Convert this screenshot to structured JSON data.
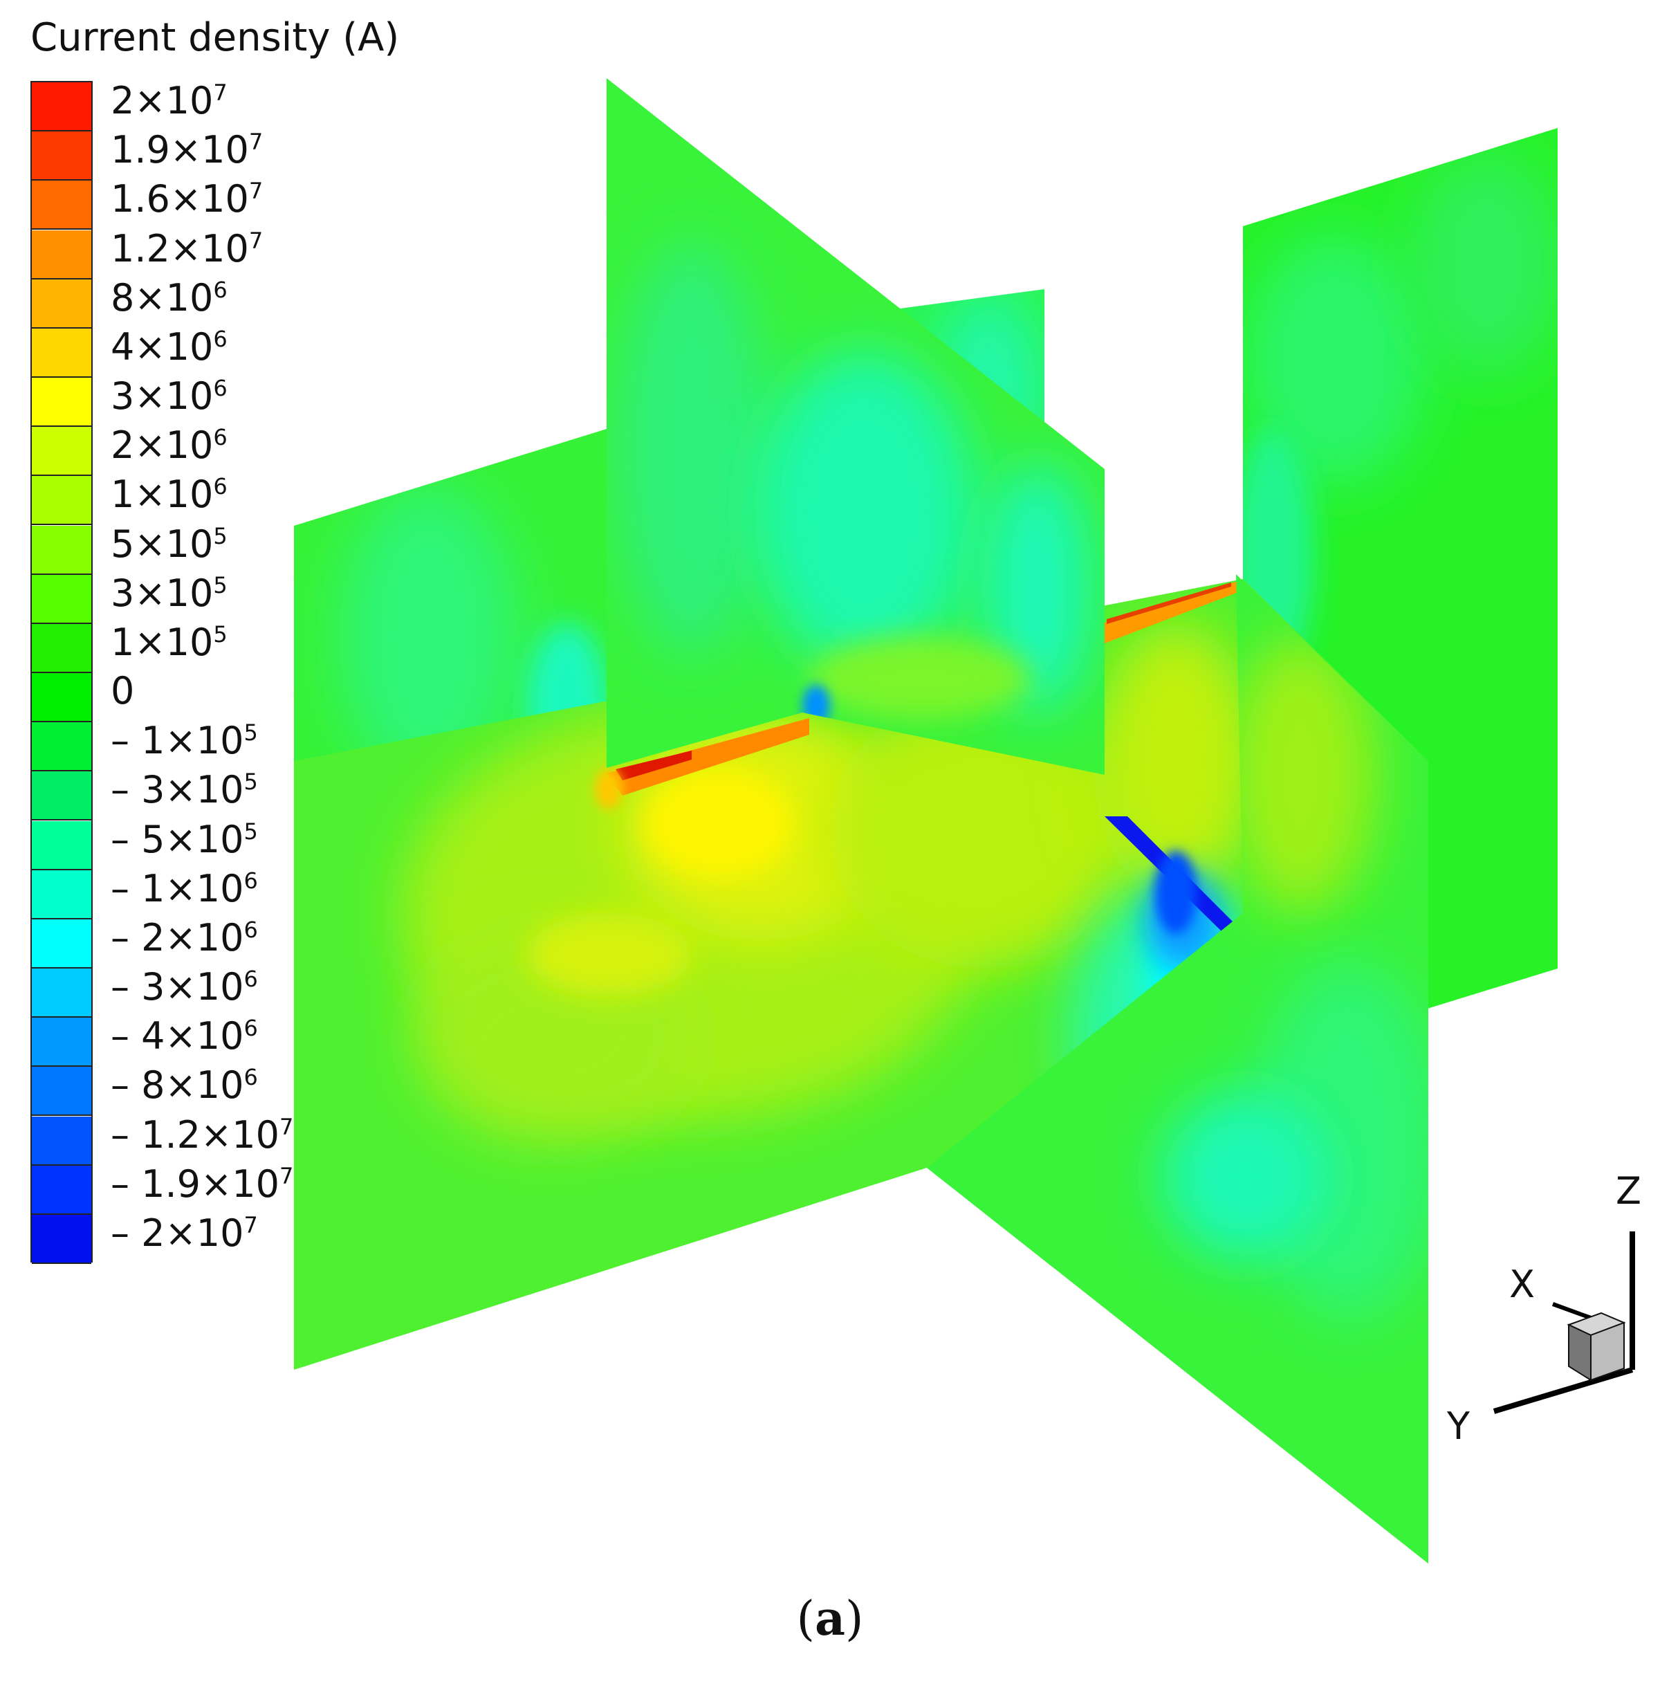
{
  "legend": {
    "title": "Current density (A)",
    "entries": [
      {
        "mantissa": "2×10",
        "exp": "7",
        "color": "#ff1a00"
      },
      {
        "mantissa": "1.9×10",
        "exp": "7",
        "color": "#ff3a00"
      },
      {
        "mantissa": "1.6×10",
        "exp": "7",
        "color": "#ff6a00"
      },
      {
        "mantissa": "1.2×10",
        "exp": "7",
        "color": "#ff9000"
      },
      {
        "mantissa": "8×10",
        "exp": "6",
        "color": "#ffb400"
      },
      {
        "mantissa": "4×10",
        "exp": "6",
        "color": "#ffd600"
      },
      {
        "mantissa": "3×10",
        "exp": "6",
        "color": "#ffff00"
      },
      {
        "mantissa": "2×10",
        "exp": "6",
        "color": "#ccff00"
      },
      {
        "mantissa": "1×10",
        "exp": "6",
        "color": "#aaff00"
      },
      {
        "mantissa": "5×10",
        "exp": "5",
        "color": "#88ff00"
      },
      {
        "mantissa": "3×10",
        "exp": "5",
        "color": "#55ff00"
      },
      {
        "mantissa": "1×10",
        "exp": "5",
        "color": "#22ee00"
      },
      {
        "mantissa": "0",
        "exp": "",
        "color": "#00ee00"
      },
      {
        "mantissa": "– 1×10",
        "exp": "5",
        "color": "#00ee33"
      },
      {
        "mantissa": "– 3×10",
        "exp": "5",
        "color": "#00ee66"
      },
      {
        "mantissa": "– 5×10",
        "exp": "5",
        "color": "#00ff99"
      },
      {
        "mantissa": "– 1×10",
        "exp": "6",
        "color": "#00ffcc"
      },
      {
        "mantissa": "– 2×10",
        "exp": "6",
        "color": "#00ffff"
      },
      {
        "mantissa": "– 3×10",
        "exp": "6",
        "color": "#00ccff"
      },
      {
        "mantissa": "– 4×10",
        "exp": "6",
        "color": "#0099ff"
      },
      {
        "mantissa": "– 8×10",
        "exp": "6",
        "color": "#0077ff"
      },
      {
        "mantissa": "– 1.2×10",
        "exp": "7",
        "color": "#0055ff"
      },
      {
        "mantissa": "– 1.9×10",
        "exp": "7",
        "color": "#0033ff"
      },
      {
        "mantissa": "– 2×10",
        "exp": "7",
        "color": "#0011ee"
      }
    ]
  },
  "axes": {
    "x": "X",
    "y": "Y",
    "z": "Z"
  },
  "caption": {
    "open": "(",
    "letter": "a",
    "close": ")"
  }
}
